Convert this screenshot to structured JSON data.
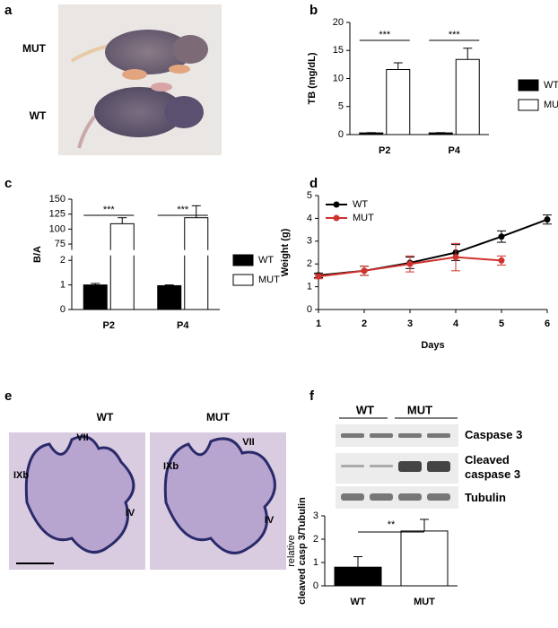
{
  "panel_labels": [
    "a",
    "b",
    "c",
    "d",
    "e",
    "f"
  ],
  "photo": {
    "labels": [
      "MUT",
      "WT"
    ]
  },
  "histology": {
    "titles": [
      "WT",
      "MUT"
    ],
    "left_labels": [
      "VII",
      "IXb",
      "IV"
    ],
    "right_labels": [
      "VII",
      "IXb",
      "IV"
    ]
  },
  "blot": {
    "groups": [
      "WT",
      "MUT"
    ],
    "bands": [
      "Caspase 3",
      "Cleaved caspase 3",
      "Tubulin"
    ]
  },
  "chart_data": [
    {
      "type": "bar",
      "ylabel": "TB (mg/dL)",
      "categories": [
        "P2",
        "P4"
      ],
      "series": [
        {
          "name": "WT",
          "color": "#000000",
          "values": [
            0.3,
            0.3
          ],
          "errors": [
            0.05,
            0.05
          ]
        },
        {
          "name": "MUT",
          "color": "#ffffff",
          "values": [
            11.6,
            13.4
          ],
          "errors": [
            1.2,
            2.0
          ]
        }
      ],
      "significance": [
        "***",
        "***"
      ],
      "ylim": [
        0,
        20
      ],
      "yticks": [
        0,
        5,
        10,
        15,
        20
      ],
      "legend": "right"
    },
    {
      "type": "bar",
      "ylabel": "B/A",
      "categories": [
        "P2",
        "P4"
      ],
      "series": [
        {
          "name": "WT",
          "color": "#000000",
          "values": [
            1.0,
            0.97
          ],
          "errors": [
            0.06,
            0.03
          ]
        },
        {
          "name": "MUT",
          "color": "#ffffff",
          "values": [
            109,
            119
          ],
          "errors": [
            10,
            20
          ]
        }
      ],
      "significance": [
        "***",
        "***"
      ],
      "ylim": [
        0,
        150
      ],
      "ybreak": [
        2.2,
        65
      ],
      "yticks": [
        0,
        1,
        2,
        75,
        100,
        125,
        150
      ],
      "legend": "right"
    },
    {
      "type": "line",
      "xlabel": "Days",
      "ylabel": "Weight (g)",
      "x": [
        1,
        2,
        3,
        4,
        5,
        6
      ],
      "series": [
        {
          "name": "WT",
          "color": "#000000",
          "values": [
            1.5,
            1.7,
            2.05,
            2.5,
            3.2,
            3.95
          ],
          "errors": [
            0.1,
            0.2,
            0.25,
            0.35,
            0.25,
            0.2
          ]
        },
        {
          "name": "MUT",
          "color": "#d0322d",
          "values": [
            1.45,
            1.7,
            2.0,
            2.3,
            2.15,
            null
          ],
          "errors": [
            0.1,
            0.2,
            0.35,
            0.6,
            0.2,
            null
          ]
        }
      ],
      "xlim": [
        1,
        6
      ],
      "xticks": [
        1,
        2,
        3,
        4,
        5,
        6
      ],
      "ylim": [
        0,
        5
      ],
      "yticks": [
        0,
        1,
        2,
        3,
        4,
        5
      ],
      "legend": "upper left"
    },
    {
      "type": "bar",
      "ylabel": [
        "relative",
        "cleaved casp 3/Tubulin"
      ],
      "categories": [
        "WT",
        "MUT"
      ],
      "values": [
        0.8,
        2.35
      ],
      "errors": [
        0.45,
        0.5
      ],
      "colors": [
        "#000000",
        "#ffffff"
      ],
      "significance": "**",
      "ylim": [
        0,
        3
      ],
      "yticks": [
        0,
        1,
        2,
        3
      ]
    }
  ]
}
